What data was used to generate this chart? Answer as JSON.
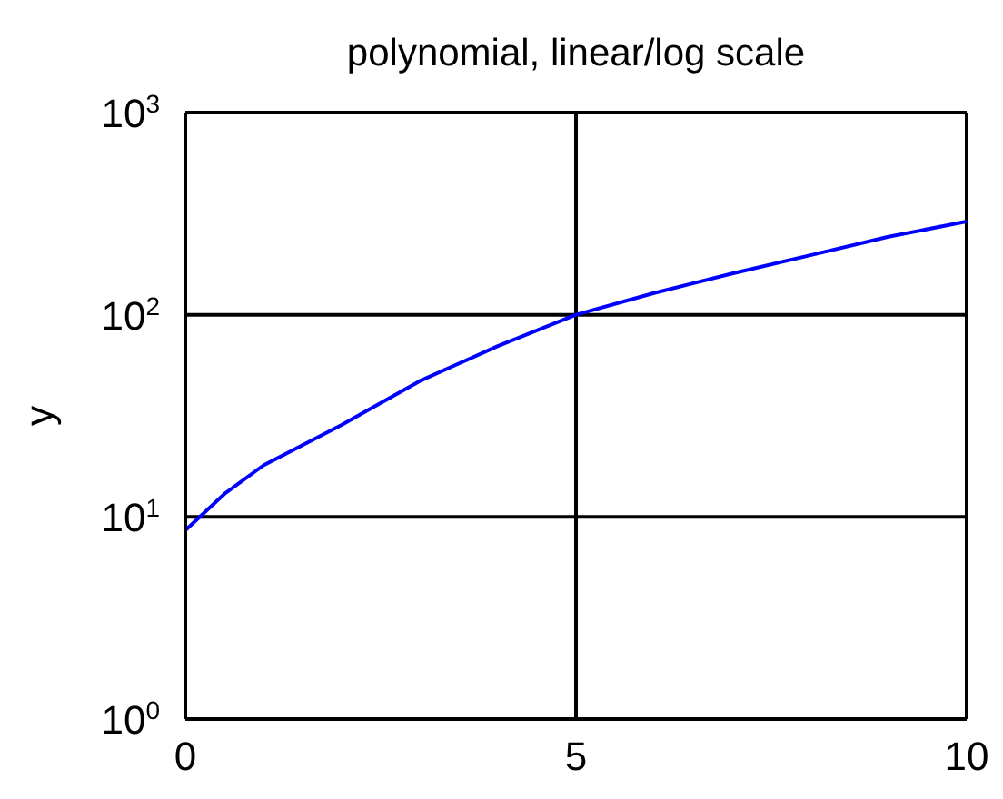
{
  "chart_data": {
    "type": "line",
    "title": "polynomial, linear/log scale",
    "ylabel": "y",
    "x": [
      0,
      0.5,
      1,
      2,
      3,
      4,
      5,
      6,
      7,
      8,
      9,
      10
    ],
    "series": [
      {
        "color": "#0000ff",
        "values": [
          8.6,
          13,
          18,
          28.5,
          47,
          70,
          100,
          128,
          160,
          197,
          243,
          289
        ]
      }
    ],
    "xlim": [
      0,
      10
    ],
    "xticks": [
      0,
      5,
      10
    ],
    "ylim": [
      1,
      1000
    ],
    "yticks": [
      {
        "value": 1,
        "label": "10$^{0}$"
      },
      {
        "value": 10,
        "label": "10$^{1}$"
      },
      {
        "value": 100,
        "label": "10$^{2}$"
      },
      {
        "value": 1000,
        "label": "10$^{3}$"
      }
    ],
    "log": "y",
    "grid": true,
    "marker": "none",
    "line_style": "solid"
  }
}
